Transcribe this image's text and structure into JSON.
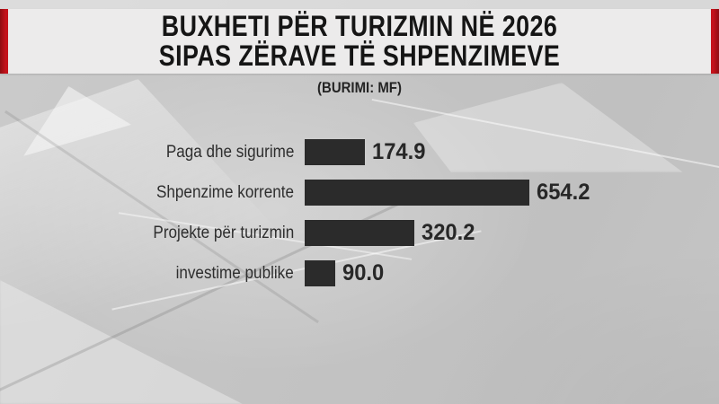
{
  "header": {
    "title_line1": "BUXHETI PËR TURIZMIN NË 2026",
    "title_line2": "SIPAS ZËRAVE TË SHPENZIMEVE",
    "source": "(BURIMI: MF)"
  },
  "chart_data": {
    "type": "bar",
    "orientation": "horizontal",
    "title": "BUXHETI PËR TURIZMIN NË 2026 SIPAS ZËRAVE TË SHPENZIMEVE",
    "source": "(BURIMI: MF)",
    "categories": [
      "Paga dhe sigurime",
      "Shpenzime korrente",
      "Projekte për turizmin",
      "investime publike"
    ],
    "values": [
      174.9,
      654.2,
      320.2,
      90.0
    ],
    "value_labels": [
      "174.9",
      "654.2",
      "320.2",
      "90.0"
    ],
    "xlim": [
      0,
      654.2
    ],
    "grid": false,
    "legend": false,
    "data_labels_position": "right-of-bar"
  },
  "colors": {
    "bar": "#2b2b2b",
    "accent_red": "#c4121b",
    "banner_bg": "#ecebeb",
    "background": "#c3c3c3",
    "text": "#1d1d1d"
  }
}
